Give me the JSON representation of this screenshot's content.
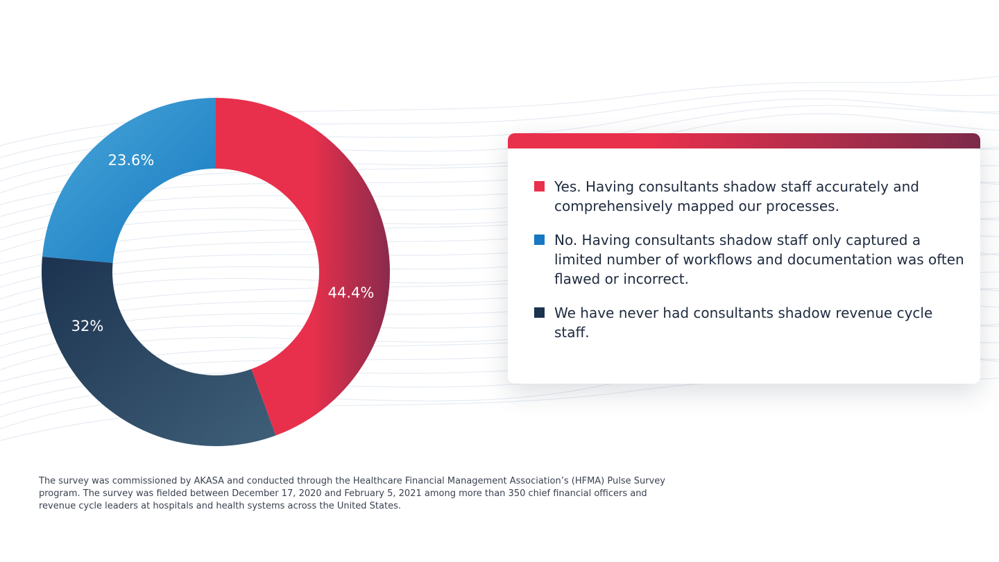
{
  "colors": {
    "yes": "#e8304c",
    "yes_dark": "#8a2a4c",
    "no": "#1678c2",
    "no_light": "#4aa8d8",
    "never": "#1c3350",
    "never_light": "#3f5f78"
  },
  "legend": [
    {
      "text": "Yes. Having consultants shadow staff accurately and comprehensively mapped our processes."
    },
    {
      "text": "No. Having consultants shadow staff only captured a limited number of workflows and documentation was often flawed or incorrect."
    },
    {
      "text": "We have never had consultants shadow revenue cycle staff."
    }
  ],
  "footnote": "The survey was commissioned by AKASA and conducted through the Healthcare Financial Management Association’s (HFMA) Pulse Survey program. The survey was fielded between December 17, 2020 and February 5, 2021 among more than 350 chief financial officers and revenue cycle leaders at hospitals and health systems across the United States.",
  "chart_data": {
    "type": "pie",
    "variant": "donut",
    "title": "",
    "slices": [
      {
        "value": 44.4,
        "label": "44.4%"
      },
      {
        "value": 32,
        "label": "32%"
      },
      {
        "value": 23.6,
        "label": "23.6%"
      }
    ],
    "legend_placement": "right"
  }
}
